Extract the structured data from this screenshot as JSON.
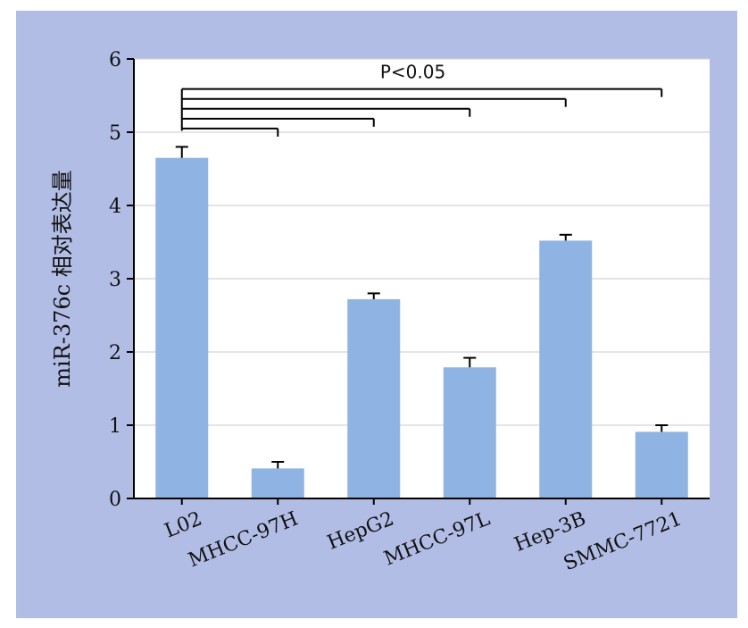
{
  "chart_data": {
    "type": "bar",
    "title": "",
    "xlabel": "",
    "ylabel": "miR-376c 相对表达量",
    "ylim": [
      0,
      6
    ],
    "yticks": [
      0,
      1,
      2,
      3,
      4,
      5,
      6
    ],
    "grid": true,
    "categories": [
      "L02",
      "MHCC-97H",
      "HepG2",
      "MHCC-97L",
      "Hep-3B",
      "SMMC-7721"
    ],
    "values": [
      4.65,
      0.41,
      2.72,
      1.79,
      3.52,
      0.91
    ],
    "errors": [
      0.15,
      0.09,
      0.08,
      0.13,
      0.08,
      0.09
    ],
    "bar_color": "#8fb4e3",
    "background_color": "#b2bde6",
    "significance": {
      "label": "P<0.05",
      "reference": "L02",
      "compared": [
        "MHCC-97H",
        "HepG2",
        "MHCC-97L",
        "Hep-3B",
        "SMMC-7721"
      ]
    }
  }
}
